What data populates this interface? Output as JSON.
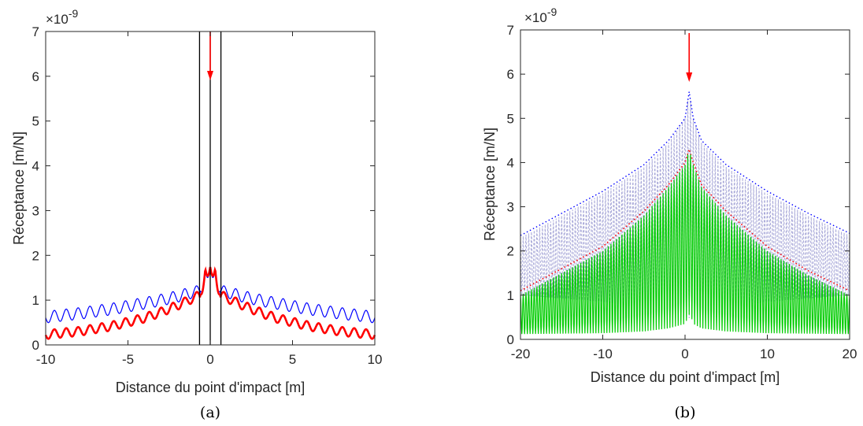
{
  "chart_data": [
    {
      "type": "line",
      "caption": "(a)",
      "xlabel": "Distance du point d'impact [m]",
      "ylabel": "Réceptance [m/N]",
      "xlim": [
        -10,
        10
      ],
      "ylim": [
        0,
        7
      ],
      "y_multiplier": "×10",
      "y_exponent": "-9",
      "xticks": [
        "-10",
        "-5",
        "0",
        "5",
        "10"
      ],
      "yticks": [
        "0",
        "1",
        "2",
        "3",
        "4",
        "5",
        "6",
        "7"
      ],
      "vertical_lines_x": [
        -0.65,
        0,
        0.65
      ],
      "impact_arrow_x": 0,
      "grid": false,
      "series": [
        {
          "color": "#0000ff",
          "x": [
            -10,
            -8,
            -6,
            -4,
            -3,
            -2,
            -1,
            -0.6,
            -0.3,
            0,
            0.3,
            0.6,
            1,
            2,
            3,
            4,
            6,
            8,
            10
          ],
          "y": [
            0.62,
            0.7,
            0.8,
            0.93,
            1.0,
            1.08,
            1.18,
            1.2,
            1.65,
            1.72,
            1.65,
            1.2,
            1.18,
            1.08,
            1.0,
            0.93,
            0.8,
            0.7,
            0.62
          ],
          "oscillation_amplitude": 0.13,
          "oscillation_period": 0.72
        },
        {
          "color": "#ff0000",
          "x": [
            -10,
            -8,
            -6,
            -4,
            -3,
            -2,
            -1,
            -0.6,
            -0.3,
            0,
            0.3,
            0.6,
            1,
            2,
            3,
            4,
            6,
            8,
            10
          ],
          "y": [
            0.23,
            0.3,
            0.42,
            0.6,
            0.73,
            0.88,
            1.05,
            1.12,
            1.7,
            1.74,
            1.7,
            1.12,
            1.05,
            0.88,
            0.73,
            0.6,
            0.42,
            0.3,
            0.23
          ],
          "oscillation_amplitude": 0.1,
          "oscillation_period": 0.72
        }
      ]
    },
    {
      "type": "line",
      "caption": "(b)",
      "xlabel": "Distance du point d'impact [m]",
      "ylabel": "Réceptance [m/N]",
      "xlim": [
        -20,
        20
      ],
      "ylim": [
        0,
        7
      ],
      "y_multiplier": "×10",
      "y_exponent": "-9",
      "xticks": [
        "-20",
        "-10",
        "0",
        "10",
        "20"
      ],
      "yticks": [
        "0",
        "1",
        "2",
        "3",
        "4",
        "5",
        "6",
        "7"
      ],
      "impact_arrow_x": 0.5,
      "grid": false,
      "series": [
        {
          "color": "#0000ff",
          "style": "dotted envelope",
          "x": [
            -20,
            -15,
            -10,
            -5,
            -2,
            0,
            0.5,
            1,
            2,
            5,
            10,
            15,
            20
          ],
          "y": [
            2.35,
            2.85,
            3.35,
            3.95,
            4.5,
            5.0,
            5.6,
            5.0,
            4.5,
            3.95,
            3.35,
            2.85,
            2.4
          ]
        },
        {
          "color": "#a8a8d8",
          "style": "dashed oscillating",
          "upper_x": [
            -20,
            -15,
            -10,
            -5,
            -2,
            0,
            0.5,
            1,
            2,
            5,
            10,
            15,
            20
          ],
          "upper_y": [
            2.3,
            2.8,
            3.3,
            3.9,
            4.45,
            5.0,
            5.6,
            5.0,
            4.45,
            3.9,
            3.3,
            2.8,
            2.35
          ],
          "lower_x": [
            -20,
            -10,
            -5,
            -2,
            0,
            1,
            2,
            5,
            10,
            20
          ],
          "lower_y": [
            1.0,
            0.85,
            0.72,
            0.6,
            0.48,
            0.48,
            0.6,
            0.72,
            0.85,
            1.0
          ],
          "oscillation_count": 120
        },
        {
          "color": "#ff0000",
          "style": "dotted envelope",
          "x": [
            -20,
            -15,
            -10,
            -5,
            -2,
            0,
            0.5,
            1,
            2,
            5,
            10,
            15,
            20
          ],
          "y": [
            1.1,
            1.6,
            2.1,
            2.9,
            3.5,
            4.0,
            4.3,
            4.0,
            3.5,
            2.9,
            2.1,
            1.55,
            1.1
          ]
        },
        {
          "color": "#00cc00",
          "style": "solid oscillating",
          "upper_x": [
            -20,
            -15,
            -10,
            -5,
            -2,
            0,
            0.5,
            1,
            2,
            5,
            10,
            15,
            20
          ],
          "upper_y": [
            1.0,
            1.5,
            2.0,
            2.8,
            3.45,
            3.95,
            4.3,
            3.95,
            3.45,
            2.8,
            2.0,
            1.45,
            1.0
          ],
          "lower_x": [
            -20,
            -10,
            -5,
            -2,
            0,
            0.6,
            1,
            2,
            5,
            10,
            20
          ],
          "lower_y": [
            0.12,
            0.14,
            0.18,
            0.25,
            0.35,
            0.6,
            0.35,
            0.25,
            0.18,
            0.14,
            0.12
          ],
          "oscillation_count": 120
        }
      ]
    }
  ]
}
